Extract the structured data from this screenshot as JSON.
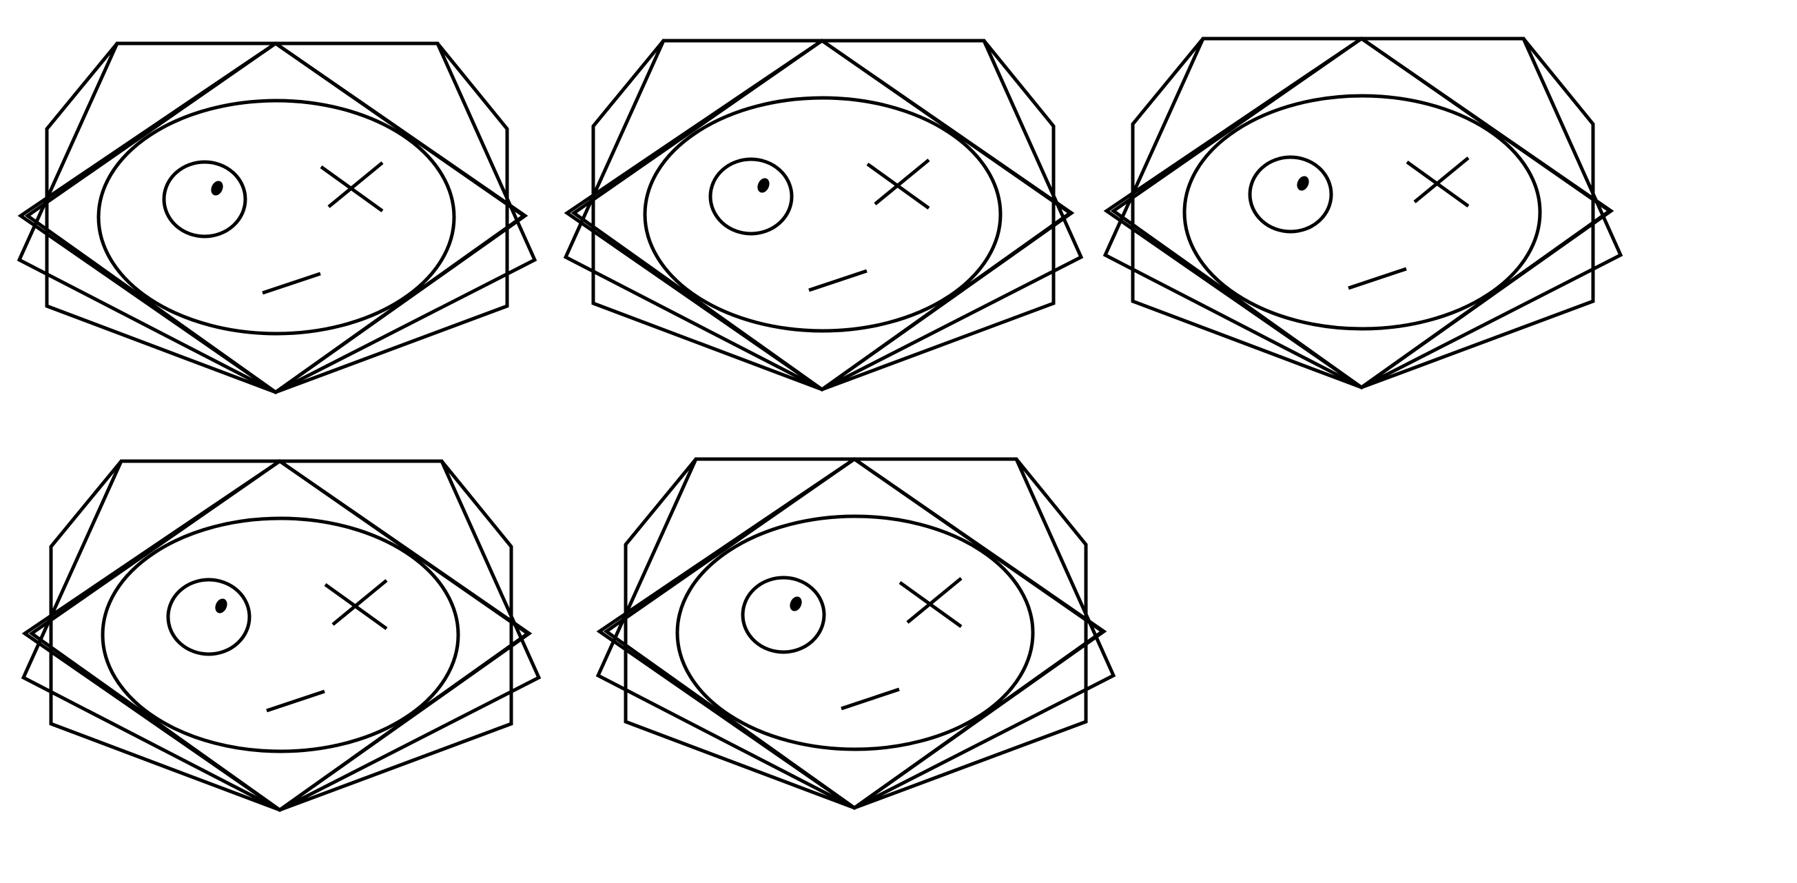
{
  "canvas": {
    "background": "#ffffff"
  },
  "style": {
    "stroke_color": "#000000",
    "pupil_color": "#000000"
  },
  "figure": {
    "description_items": [
      "hexagon",
      "hexagon-rotated",
      "rhombus",
      "face-ellipse",
      "open-eye",
      "pupil",
      "x-eye",
      "mouth-line"
    ]
  },
  "faces": [
    {
      "id": "face-1"
    },
    {
      "id": "face-2"
    },
    {
      "id": "face-3"
    },
    {
      "id": "face-4"
    },
    {
      "id": "face-5"
    }
  ]
}
